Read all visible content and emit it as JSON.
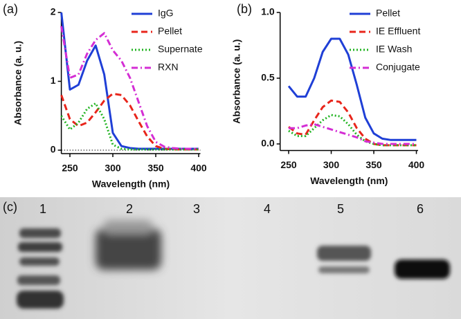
{
  "chart_data": [
    {
      "type": "line",
      "label": "(a)",
      "x_label": "Wavelength (nm)",
      "y_label": "Absorbance (a. u.)",
      "x": [
        240,
        250,
        260,
        270,
        280,
        290,
        300,
        310,
        320,
        330,
        340,
        350,
        360,
        370,
        380,
        390,
        400
      ],
      "series": [
        {
          "name": "IgG",
          "color": "#1f3fd6",
          "style": "solid",
          "values": [
            2.0,
            0.88,
            0.95,
            1.3,
            1.52,
            1.1,
            0.25,
            0.06,
            0.03,
            0.02,
            0.02,
            0.02,
            0.02,
            0.02,
            0.02,
            0.02,
            0.02
          ]
        },
        {
          "name": "Pellet",
          "color": "#e8251b",
          "style": "dashed",
          "values": [
            0.8,
            0.45,
            0.35,
            0.4,
            0.55,
            0.72,
            0.82,
            0.8,
            0.65,
            0.42,
            0.2,
            0.06,
            0.02,
            0.01,
            0.01,
            0.01,
            0.01
          ]
        },
        {
          "name": "Supernate",
          "color": "#22b422",
          "style": "dotted",
          "values": [
            0.5,
            0.3,
            0.4,
            0.6,
            0.68,
            0.45,
            0.08,
            0.02,
            0.01,
            0.01,
            0.01,
            0.01,
            0.01,
            0.01,
            0.01,
            0.01,
            0.01
          ]
        },
        {
          "name": "RXN",
          "color": "#d42ed4",
          "style": "dashdot",
          "values": [
            1.8,
            1.05,
            1.1,
            1.4,
            1.6,
            1.7,
            1.45,
            1.3,
            1.05,
            0.7,
            0.35,
            0.12,
            0.05,
            0.03,
            0.02,
            0.02,
            0.02
          ]
        }
      ],
      "xlim": [
        240,
        402
      ],
      "ylim": [
        -0.05,
        2.0
      ],
      "xticks": [
        250,
        300,
        350,
        400
      ],
      "yticks": [
        0,
        1,
        2
      ],
      "zero_line": true
    },
    {
      "type": "line",
      "label": "(b)",
      "x_label": "Wavelength (nm)",
      "y_label": "Absorbance (a. u.)",
      "x": [
        250,
        260,
        270,
        280,
        290,
        300,
        310,
        320,
        330,
        340,
        350,
        360,
        370,
        380,
        390,
        400
      ],
      "series": [
        {
          "name": "Pellet",
          "color": "#1f3fd6",
          "style": "solid",
          "values": [
            0.44,
            0.36,
            0.36,
            0.5,
            0.7,
            0.8,
            0.8,
            0.68,
            0.45,
            0.2,
            0.08,
            0.04,
            0.03,
            0.03,
            0.03,
            0.03
          ]
        },
        {
          "name": "IE Effluent",
          "color": "#e8251b",
          "style": "dashed",
          "values": [
            0.13,
            0.08,
            0.07,
            0.18,
            0.28,
            0.33,
            0.32,
            0.24,
            0.12,
            0.04,
            0.0,
            -0.01,
            -0.01,
            -0.01,
            -0.01,
            -0.01
          ]
        },
        {
          "name": "IE Wash",
          "color": "#22b422",
          "style": "dotted",
          "values": [
            0.1,
            0.06,
            0.06,
            0.12,
            0.18,
            0.22,
            0.21,
            0.15,
            0.07,
            0.02,
            0.0,
            -0.01,
            -0.01,
            -0.01,
            -0.01,
            -0.01
          ]
        },
        {
          "name": "Conjugate",
          "color": "#d42ed4",
          "style": "dashdot",
          "values": [
            0.12,
            0.12,
            0.14,
            0.15,
            0.13,
            0.11,
            0.09,
            0.07,
            0.05,
            0.02,
            0.01,
            0.0,
            0.0,
            0.0,
            0.0,
            0.0
          ]
        }
      ],
      "xlim": [
        240,
        402
      ],
      "ylim": [
        -0.05,
        1.0
      ],
      "xticks": [
        250,
        300,
        350,
        400
      ],
      "yticks": [
        {
          "value": 0,
          "label": "0.0"
        },
        {
          "value": 0.5,
          "label": "0.5"
        },
        {
          "value": 1,
          "label": "1.0"
        }
      ],
      "zero_line": false
    }
  ],
  "gel": {
    "label": "(c)",
    "lanes": [
      "1",
      "2",
      "3",
      "4",
      "5",
      "6"
    ]
  }
}
